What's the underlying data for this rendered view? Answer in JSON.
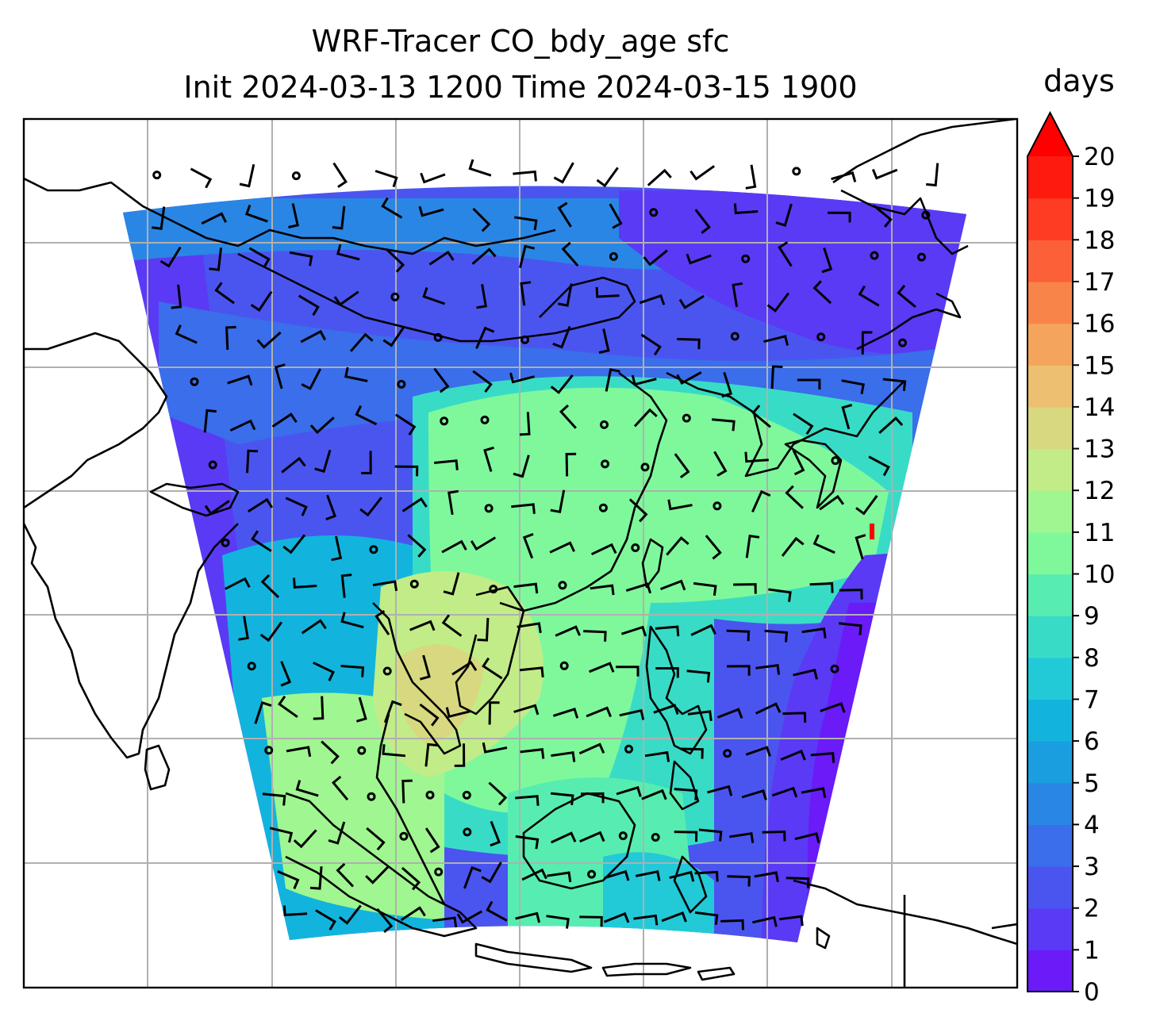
{
  "title": {
    "line1": "WRF-Tracer CO_bdy_age sfc",
    "line2": "Init 2024-03-13 1200 Time 2024-03-15 1900"
  },
  "colorbar": {
    "label": "days",
    "min": 0,
    "max": 20,
    "step": 1,
    "extend": "max",
    "ticks": [
      "0",
      "1",
      "2",
      "3",
      "4",
      "5",
      "6",
      "7",
      "8",
      "9",
      "10",
      "11",
      "12",
      "13",
      "14",
      "15",
      "16",
      "17",
      "18",
      "19",
      "20"
    ],
    "colors": [
      "#6a1bf8",
      "#5a3af5",
      "#4a55f0",
      "#3a6eea",
      "#2a86e4",
      "#1a9ee0",
      "#12b4dd",
      "#22cad8",
      "#38dcc6",
      "#58edb0",
      "#7ff89c",
      "#a0f690",
      "#c2ec88",
      "#d8d880",
      "#ecc070",
      "#f5a45c",
      "#f9844a",
      "#fc6038",
      "#fe3c24",
      "#ff1a10",
      "#ff0000"
    ]
  },
  "map": {
    "gridlines": "on",
    "overlay": "wind barbs",
    "coastlines": "on"
  }
}
